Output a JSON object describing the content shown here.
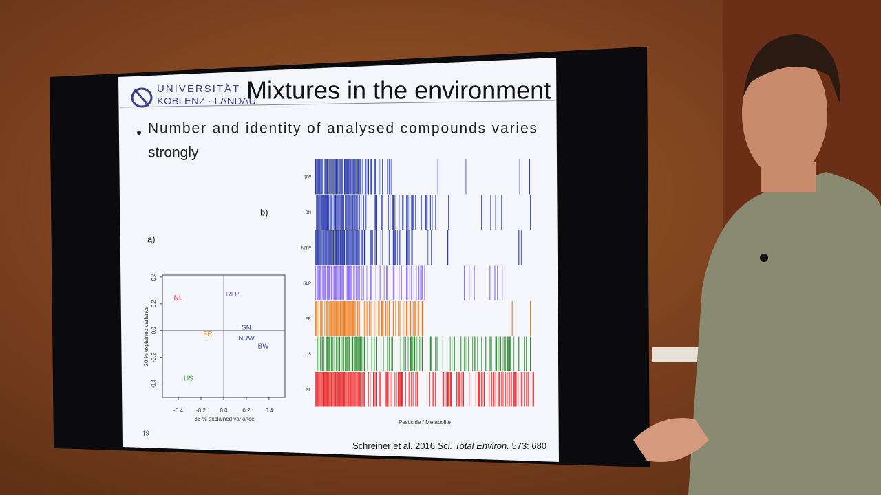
{
  "slide": {
    "logo": {
      "line1": "UNIVERSITÄT",
      "line2": "KOBLENZ · LANDAU"
    },
    "title": "Mixtures in the environment",
    "bullet_lines": [
      "Number and identity of analysed compounds varies",
      "strongly"
    ],
    "panel_a": "a)",
    "panel_b": "b)",
    "scatter": {
      "xlabel": "36 % explained variance",
      "ylabel": "20 % explained variance",
      "xlim": [
        -0.54,
        0.54
      ],
      "ylim": [
        -0.5,
        0.415
      ],
      "xticks": [
        -0.4,
        -0.2,
        {
          "value": 0,
          "label": "0.0"
        },
        0.2,
        0.4
      ],
      "yticks": [
        -0.4,
        -0.2,
        {
          "value": 0,
          "label": "0.0"
        },
        0.2,
        0.4
      ],
      "points": [
        {
          "label": "NL",
          "x": -0.4,
          "y": 0.24,
          "color": "#cc2222"
        },
        {
          "label": "RLP",
          "x": 0.08,
          "y": 0.27,
          "color": "#8866dd"
        },
        {
          "label": "SN",
          "x": 0.2,
          "y": 0.02,
          "color": "#334499"
        },
        {
          "label": "FR",
          "x": -0.14,
          "y": -0.03,
          "color": "#dd8822"
        },
        {
          "label": "NRW",
          "x": 0.2,
          "y": -0.06,
          "color": "#334499"
        },
        {
          "label": "BW",
          "x": 0.35,
          "y": -0.12,
          "color": "#334499"
        },
        {
          "label": "US",
          "x": -0.31,
          "y": -0.36,
          "color": "#33aa33"
        }
      ]
    },
    "barcode": {
      "xlabel": "Pesticide / Metabolite",
      "rows": [
        {
          "label": "BW",
          "color": "#2233aa"
        },
        {
          "label": "SN",
          "color": "#2233aa"
        },
        {
          "label": "NRW",
          "color": "#2233aa"
        },
        {
          "label": "RLP",
          "color": "#8866ee"
        },
        {
          "label": "FR",
          "color": "#ee7711"
        },
        {
          "label": "US",
          "color": "#228822"
        },
        {
          "label": "NL",
          "color": "#ee2222"
        }
      ]
    },
    "page_number": "19",
    "citation": {
      "authors": "Schreiner et al. 2016 ",
      "journal": "Sci. Total Environ.",
      "rest": " 573: 680"
    }
  }
}
